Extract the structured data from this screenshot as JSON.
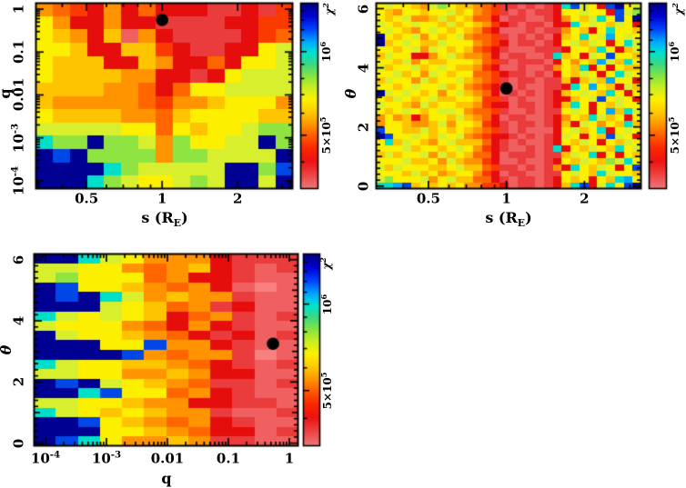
{
  "figure": {
    "background": "#ffffff",
    "marker_color": "#000000"
  },
  "palette": {
    "0": "#f88080",
    "1": "#f06060",
    "2": "#ea3c3c",
    "3": "#e60d0d",
    "4": "#fb3a00",
    "5": "#ff6600",
    "6": "#ff9300",
    "7": "#ffc400",
    "8": "#fdef00",
    "9": "#d8ef2e",
    "a": "#90e442",
    "b": "#3ed164",
    "c": "#00e0c8",
    "d": "#00a8ff",
    "e": "#0047e8",
    "f": "#000092"
  },
  "colorbar": {
    "label": "χ^2",
    "scale": "log",
    "min": 320000,
    "max": 1500000,
    "major": [
      500000,
      1000000
    ],
    "tick_labels": [
      "5×10^5",
      "10^6"
    ],
    "minor": [
      400000,
      600000,
      700000,
      800000,
      900000,
      1100000,
      1200000,
      1300000,
      1400000
    ],
    "gradient": [
      [
        0.0,
        "#000080"
      ],
      [
        0.07,
        "#0000d0"
      ],
      [
        0.14,
        "#0040ff"
      ],
      [
        0.21,
        "#00a8ff"
      ],
      [
        0.27,
        "#00e4d0"
      ],
      [
        0.33,
        "#3cd880"
      ],
      [
        0.4,
        "#8ce63c"
      ],
      [
        0.46,
        "#cdef1f"
      ],
      [
        0.52,
        "#fdf000"
      ],
      [
        0.59,
        "#ffc800"
      ],
      [
        0.65,
        "#ff9800"
      ],
      [
        0.71,
        "#ff6000"
      ],
      [
        0.78,
        "#fb2800"
      ],
      [
        0.85,
        "#ee1212"
      ],
      [
        0.93,
        "#ed4848"
      ],
      [
        1.0,
        "#f07a7a"
      ]
    ]
  },
  "value_note": "cell digits 0-f map chi-squared from 3.2e5 (0, salmon red, best fit) to 1.5e6 (f, navy blue), log spaced per colorbar",
  "chart_data": [
    {
      "type": "heatmap",
      "xlabel": "s (R_E)",
      "ylabel": "q",
      "x_axis": {
        "scale": "log",
        "min": 0.313,
        "max": 3.32,
        "major": [
          0.5,
          1,
          2
        ],
        "labels": [
          "0.5",
          "1",
          "2"
        ],
        "minor": [
          0.4,
          0.6,
          0.7,
          0.8,
          0.9,
          3
        ]
      },
      "y_axis": {
        "scale": "log",
        "min": 6.4e-05,
        "max": 1.41,
        "major": [
          0.0001,
          0.001,
          0.01,
          0.1,
          1
        ],
        "labels": [
          "10^-4",
          "10^-3",
          "0.01",
          "0.1",
          "1"
        ],
        "minor": "log"
      },
      "best_fit": {
        "x": 1.0,
        "y": 0.56
      },
      "grid": {
        "cols": 15,
        "rows": 14,
        "cells": [
          "654363533322324",
          "863363322223344",
          "876371632222345",
          "887337743223389",
          "877733763353889",
          "877776633238999",
          "777766535889999",
          "766666546678886",
          "877776657888877",
          "9999988587889aa",
          "caafaa96a8899fa",
          "fefaaaa6aa9999f",
          "ffffca99999ffae",
          "fffca9889a9ff9f"
        ]
      }
    },
    {
      "type": "heatmap",
      "xlabel": "s (R_E)",
      "ylabel": "θ",
      "x_axis": {
        "scale": "log",
        "min": 0.313,
        "max": 3.32,
        "major": [
          0.5,
          1,
          2
        ],
        "labels": [
          "0.5",
          "1",
          "2"
        ],
        "minor": [
          0.4,
          0.6,
          0.7,
          0.8,
          0.9,
          3
        ]
      },
      "y_axis": {
        "scale": "linear",
        "min": -0.1,
        "max": 6.2,
        "major": [
          0,
          2,
          4,
          6
        ],
        "labels": [
          "0",
          "2",
          "4",
          "6"
        ],
        "medium": [
          1,
          3,
          5
        ],
        "minor_step": 0.2
      },
      "best_fit": {
        "x": 1.0,
        "y": 3.3
      },
      "grid": {
        "cols": 30,
        "rows": 30,
        "cells": [
          "8988769a8776542212123ce983ef89",
          "876887889786542121223889883e9a",
          "8789667978755312211236879c8e8f",
          "9878988797876432122133c8987983",
          "89876898787643111212268738c887",
          "f878968789655421212137 8c89d898",
          "f789877988865431221238979838c9",
          "887896987875432111222388 7c8379",
          "79883368976653122112c78398e887",
          "887968778887542122213868 7d97c8",
          "97889789877643112112687c383877",
          "8897869878855432212138798 38c98",
          "79886978897654212212273797d883",
          "887898897865432121122 3c8d87397",
          "f98987868976531212123789 87c838",
          "87987897788744212112337 89e8983",
          "988769788776433122123 7c8387988",
          "87898789986554211212289838d7c9",
          "686736887976531221123687c97838",
          "6887667968874321221237398687c7",
          "e887797878765421211138978c3898",
          "fe88987989654332121239838 7e983",
          "8c79876897775321211238798 38798",
          "88897887898643211212c387987c89",
          "797889697875531222122798c38387",
          "888977869766431121123879 87a9c8",
          "979888778977542212126 3c879838e",
          "888797867886431221122898 7c9887",
          "9a888968977553212212387838 7cd8",
          "ccde78787866443122123 7ce39c8ef"
        ]
      }
    },
    {
      "type": "heatmap",
      "xlabel": "q",
      "ylabel": "θ",
      "x_axis": {
        "scale": "log",
        "min": 6.4e-05,
        "max": 1.41,
        "major": [
          0.0001,
          0.001,
          0.01,
          0.1,
          1
        ],
        "labels": [
          "10^-4",
          "10^-3",
          "0.01",
          "0.1",
          "1"
        ],
        "minor": "log"
      },
      "y_axis": {
        "scale": "linear",
        "min": -0.1,
        "max": 6.2,
        "major": [
          0,
          2,
          4,
          6
        ],
        "labels": [
          "0",
          "2",
          "4",
          "6"
        ],
        "medium": [
          1,
          3,
          5
        ],
        "minor_step": 0.2
      },
      "best_fit": {
        "x": 0.54,
        "y": 3.25
      },
      "grid": {
        "cols": 12,
        "rows": 20,
        "cells": [
          "ffc986663222",
          "998865673212",
          "9a8885633211",
          "fe8876563101",
          "fefc96766211",
          "fff987562311",
          "c98987356212",
          "988865363211",
          "f98876532312",
          "fff88e663211",
          "ffffe6566201",
          "c98877653212",
          "998866763311",
          "fef987652212",
          "ffce88563211",
          "998876633221",
          "c98787662112",
          "ffe876563211",
          "fff887653312",
          "fec866762211"
        ]
      }
    }
  ]
}
